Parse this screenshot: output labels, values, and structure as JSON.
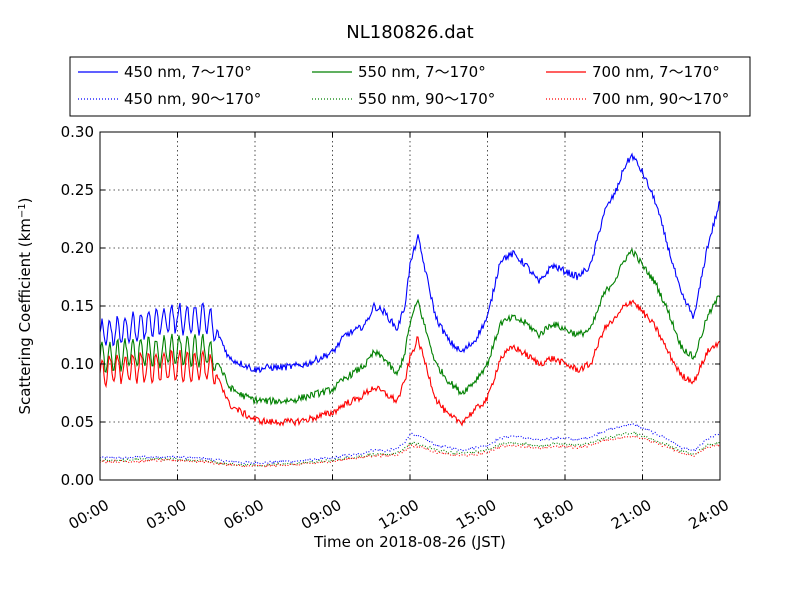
{
  "chart_data": {
    "type": "line",
    "title": "NL180826.dat",
    "xlabel": "Time on 2018-08-26 (JST)",
    "ylabel": "Scattering Coefficient (km",
    "ylabel_sup": "−1",
    "ylabel_close": ")",
    "x_ticks": [
      "00:00",
      "03:00",
      "06:00",
      "09:00",
      "12:00",
      "15:00",
      "18:00",
      "21:00",
      "24:00"
    ],
    "xlim": [
      0,
      24
    ],
    "ylim": [
      0.0,
      0.3
    ],
    "y_ticks": [
      "0.00",
      "0.05",
      "0.10",
      "0.15",
      "0.20",
      "0.25",
      "0.30"
    ],
    "grid": true,
    "legend_position": "top-outside",
    "x": [
      0,
      0.5,
      1,
      1.5,
      2,
      2.5,
      3,
      3.5,
      4,
      4.3,
      4.6,
      5,
      5.5,
      6,
      6.5,
      7,
      7.5,
      8,
      8.5,
      9,
      9.5,
      10,
      10.3,
      10.6,
      11,
      11.5,
      11.8,
      12,
      12.3,
      12.6,
      13,
      13.5,
      14,
      14.5,
      15,
      15.5,
      16,
      16.5,
      17,
      17.5,
      18,
      18.5,
      19,
      19.5,
      20,
      20.3,
      20.6,
      21,
      21.5,
      22,
      22.5,
      23,
      23.5,
      24
    ],
    "series": [
      {
        "name": "450 nm, 7～170°",
        "color": "#0000ff",
        "style": "solid",
        "oscillate": true,
        "values": [
          0.125,
          0.128,
          0.13,
          0.132,
          0.135,
          0.138,
          0.14,
          0.138,
          0.14,
          0.135,
          0.125,
          0.105,
          0.1,
          0.095,
          0.097,
          0.097,
          0.098,
          0.1,
          0.105,
          0.11,
          0.125,
          0.13,
          0.135,
          0.15,
          0.145,
          0.13,
          0.15,
          0.185,
          0.21,
          0.18,
          0.14,
          0.12,
          0.11,
          0.12,
          0.14,
          0.19,
          0.195,
          0.185,
          0.17,
          0.185,
          0.18,
          0.175,
          0.185,
          0.23,
          0.25,
          0.27,
          0.28,
          0.265,
          0.24,
          0.2,
          0.16,
          0.14,
          0.2,
          0.24
        ]
      },
      {
        "name": "550 nm, 7～170°",
        "color": "#008000",
        "style": "solid",
        "oscillate": true,
        "values": [
          0.105,
          0.107,
          0.108,
          0.11,
          0.11,
          0.111,
          0.112,
          0.11,
          0.112,
          0.108,
          0.1,
          0.08,
          0.073,
          0.069,
          0.068,
          0.068,
          0.069,
          0.072,
          0.075,
          0.078,
          0.088,
          0.095,
          0.1,
          0.11,
          0.105,
          0.09,
          0.11,
          0.135,
          0.155,
          0.13,
          0.1,
          0.085,
          0.075,
          0.085,
          0.1,
          0.135,
          0.14,
          0.135,
          0.125,
          0.135,
          0.13,
          0.125,
          0.13,
          0.16,
          0.175,
          0.19,
          0.198,
          0.185,
          0.17,
          0.145,
          0.115,
          0.105,
          0.14,
          0.16
        ]
      },
      {
        "name": "700 nm, 7～170°",
        "color": "#ff0000",
        "style": "solid",
        "oscillate": true,
        "values": [
          0.093,
          0.095,
          0.096,
          0.097,
          0.097,
          0.098,
          0.099,
          0.097,
          0.099,
          0.095,
          0.088,
          0.065,
          0.058,
          0.052,
          0.05,
          0.05,
          0.05,
          0.052,
          0.055,
          0.058,
          0.066,
          0.07,
          0.075,
          0.08,
          0.075,
          0.068,
          0.085,
          0.105,
          0.122,
          0.1,
          0.07,
          0.055,
          0.05,
          0.06,
          0.07,
          0.105,
          0.115,
          0.108,
          0.1,
          0.105,
          0.1,
          0.095,
          0.1,
          0.13,
          0.14,
          0.15,
          0.155,
          0.145,
          0.132,
          0.11,
          0.09,
          0.085,
          0.11,
          0.12
        ]
      },
      {
        "name": "450 nm, 90～170°",
        "color": "#0000ff",
        "style": "dotted",
        "oscillate": false,
        "values": [
          0.019,
          0.019,
          0.019,
          0.02,
          0.02,
          0.02,
          0.02,
          0.019,
          0.019,
          0.018,
          0.017,
          0.016,
          0.015,
          0.015,
          0.015,
          0.016,
          0.016,
          0.017,
          0.018,
          0.019,
          0.021,
          0.022,
          0.024,
          0.026,
          0.025,
          0.027,
          0.032,
          0.04,
          0.038,
          0.035,
          0.03,
          0.028,
          0.026,
          0.028,
          0.03,
          0.036,
          0.038,
          0.036,
          0.034,
          0.036,
          0.036,
          0.035,
          0.037,
          0.042,
          0.045,
          0.047,
          0.048,
          0.045,
          0.04,
          0.035,
          0.028,
          0.025,
          0.035,
          0.04
        ]
      },
      {
        "name": "550 nm, 90～170°",
        "color": "#008000",
        "style": "dotted",
        "oscillate": false,
        "values": [
          0.017,
          0.017,
          0.017,
          0.018,
          0.018,
          0.018,
          0.018,
          0.017,
          0.017,
          0.016,
          0.015,
          0.014,
          0.013,
          0.013,
          0.013,
          0.014,
          0.014,
          0.015,
          0.016,
          0.017,
          0.019,
          0.02,
          0.021,
          0.022,
          0.022,
          0.023,
          0.027,
          0.032,
          0.031,
          0.029,
          0.026,
          0.024,
          0.023,
          0.024,
          0.026,
          0.031,
          0.032,
          0.031,
          0.029,
          0.031,
          0.031,
          0.03,
          0.032,
          0.036,
          0.038,
          0.04,
          0.041,
          0.038,
          0.034,
          0.03,
          0.025,
          0.022,
          0.03,
          0.033
        ]
      },
      {
        "name": "700 nm, 90～170°",
        "color": "#ff0000",
        "style": "dotted",
        "oscillate": false,
        "values": [
          0.016,
          0.016,
          0.016,
          0.016,
          0.017,
          0.017,
          0.017,
          0.016,
          0.016,
          0.015,
          0.014,
          0.013,
          0.012,
          0.012,
          0.012,
          0.013,
          0.013,
          0.014,
          0.015,
          0.016,
          0.018,
          0.019,
          0.02,
          0.021,
          0.021,
          0.022,
          0.025,
          0.03,
          0.029,
          0.027,
          0.024,
          0.022,
          0.021,
          0.022,
          0.024,
          0.029,
          0.03,
          0.029,
          0.027,
          0.029,
          0.029,
          0.028,
          0.03,
          0.034,
          0.036,
          0.037,
          0.038,
          0.036,
          0.032,
          0.028,
          0.023,
          0.021,
          0.028,
          0.03
        ]
      }
    ],
    "legend_order": [
      0,
      1,
      2,
      3,
      4,
      5
    ]
  }
}
